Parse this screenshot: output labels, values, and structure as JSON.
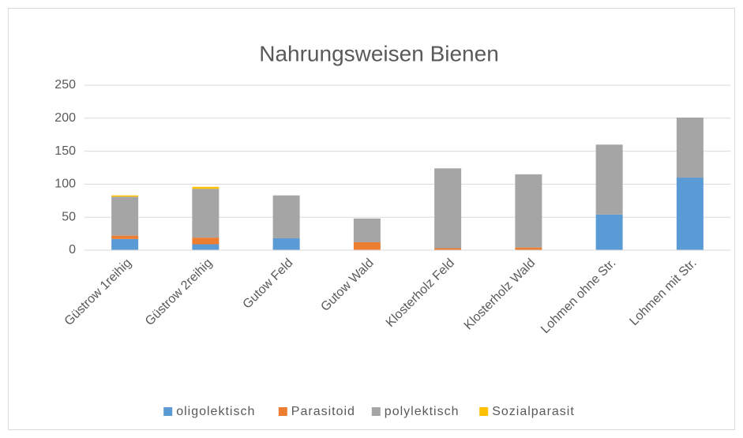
{
  "chart_data": {
    "type": "stacked_bar",
    "title": "Nahrungsweisen Bienen",
    "categories": [
      "Güstrow 1reihig",
      "Güstrow 2reihig",
      "Gutow Feld",
      "Gutow Wald",
      "Klosterholz Feld",
      "Klosterholz Wald",
      "Lohmen ohne Str.",
      "Lohmen mit Str."
    ],
    "series": [
      {
        "name": "oligolektisch",
        "color": "#5b9bd5",
        "values": [
          17,
          9,
          18,
          0,
          0,
          0,
          54,
          110
        ]
      },
      {
        "name": "Parasitoid",
        "color": "#ed7d31",
        "values": [
          5,
          10,
          0,
          12,
          3,
          4,
          0,
          0
        ]
      },
      {
        "name": "polylektisch",
        "color": "#a5a5a5",
        "values": [
          59,
          74,
          65,
          36,
          121,
          111,
          106,
          91
        ]
      },
      {
        "name": "Sozialparasit",
        "color": "#ffc000",
        "values": [
          2,
          3,
          0,
          0,
          0,
          0,
          0,
          0
        ]
      }
    ],
    "ylim": [
      0,
      250
    ],
    "yticks": [
      0,
      50,
      100,
      150,
      200,
      250
    ],
    "grid": true,
    "legend": "bottom"
  }
}
